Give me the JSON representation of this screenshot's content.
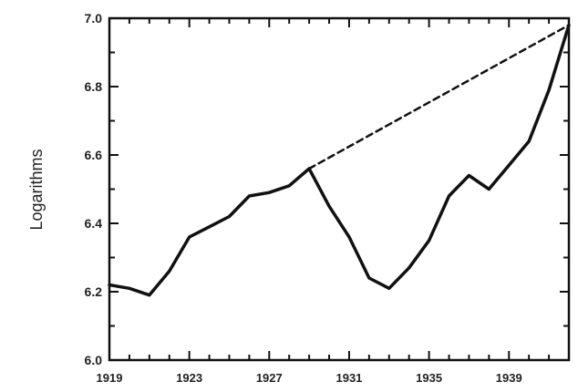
{
  "chart_data": {
    "type": "line",
    "title": "",
    "xlabel": "",
    "ylabel": "Logarithms",
    "xlim": [
      1919,
      1942
    ],
    "ylim": [
      6.0,
      7.0
    ],
    "grid": false,
    "legend": "none",
    "x_tick_labels": [
      {
        "x": 1919,
        "label": "1919"
      },
      {
        "x": 1923,
        "label": "1923"
      },
      {
        "x": 1927,
        "label": "1927"
      },
      {
        "x": 1931,
        "label": "1931"
      },
      {
        "x": 1935,
        "label": "1935"
      },
      {
        "x": 1939,
        "label": "1939"
      }
    ],
    "y_ticks": [
      6.0,
      6.2,
      6.4,
      6.6,
      6.8,
      7.0
    ],
    "y_tick_labels": [
      "6.0",
      "6.2",
      "6.4",
      "6.6",
      "6.8",
      "7.0"
    ],
    "series": [
      {
        "style": "solid",
        "color": "#111111",
        "x": [
          1919,
          1920,
          1921,
          1922,
          1923,
          1924,
          1925,
          1926,
          1927,
          1928,
          1929,
          1930,
          1931,
          1932,
          1933,
          1934,
          1935,
          1936,
          1937,
          1938,
          1939,
          1940,
          1941,
          1942
        ],
        "y": [
          6.22,
          6.21,
          6.19,
          6.26,
          6.36,
          6.39,
          6.42,
          6.48,
          6.49,
          6.51,
          6.56,
          6.45,
          6.36,
          6.24,
          6.21,
          6.27,
          6.35,
          6.48,
          6.54,
          6.5,
          6.57,
          6.64,
          6.79,
          6.98
        ]
      },
      {
        "style": "dashed",
        "color": "#111111",
        "x": [
          1929,
          1942
        ],
        "y": [
          6.56,
          6.98
        ]
      }
    ]
  }
}
